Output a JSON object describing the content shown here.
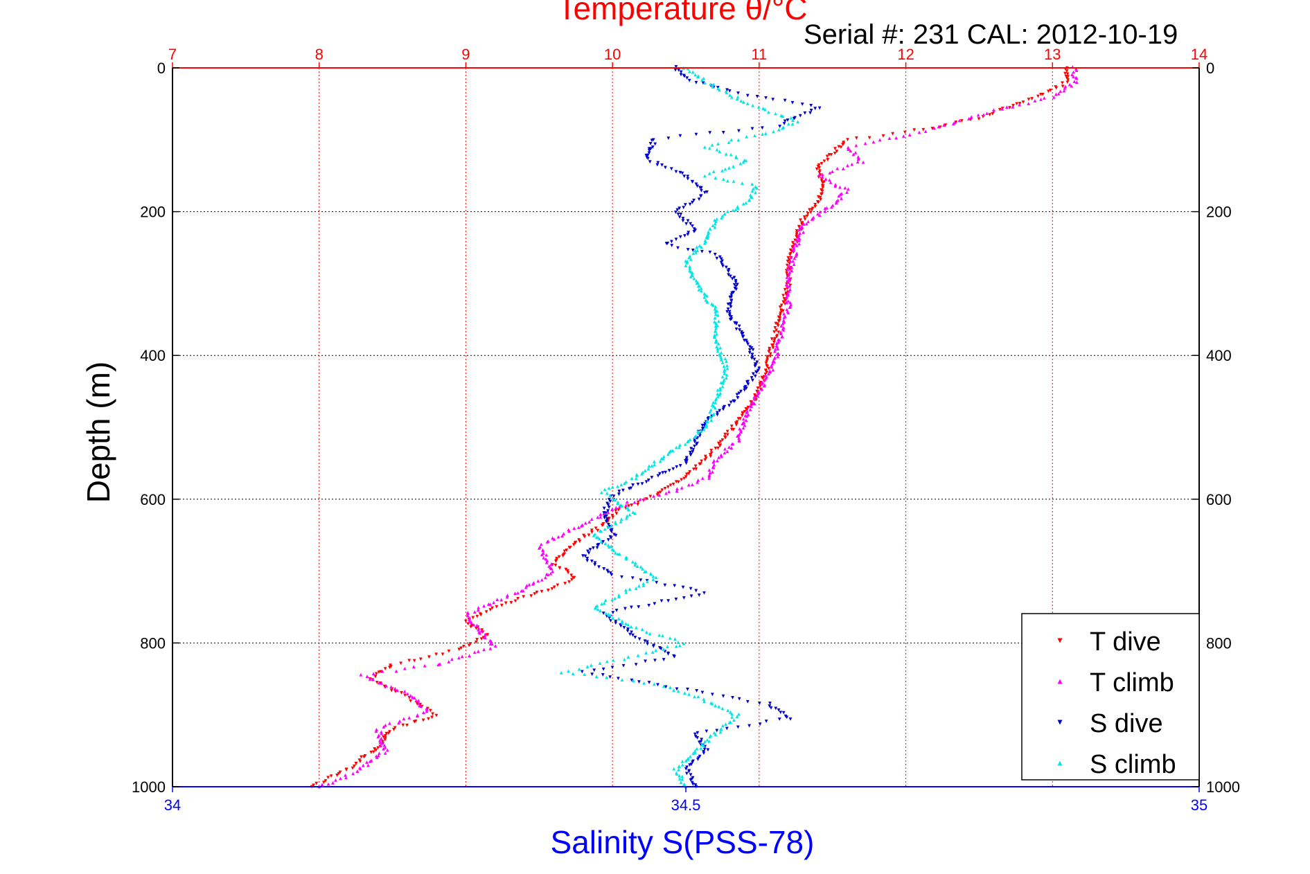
{
  "chart_data": {
    "type": "scatter",
    "title": "Temperature θ/°C",
    "subtitle": "Serial #: 231   CAL: 2012-10-19",
    "ylabel": "Depth (m)",
    "xlabel": "Salinity S(PSS-78)",
    "temperature_axis": {
      "range": [
        7,
        14
      ],
      "ticks": [
        "7",
        "8",
        "9",
        "10",
        "11",
        "12",
        "13",
        "14"
      ],
      "color": "#ff0000"
    },
    "salinity_axis": {
      "range": [
        34,
        35
      ],
      "ticks": [
        "34",
        "34.5",
        "35"
      ],
      "color": "#0000ff"
    },
    "depth_axis": {
      "range": [
        0,
        1000
      ],
      "reversed": true,
      "ticks": [
        "0",
        "200",
        "400",
        "600",
        "800",
        "1000"
      ]
    },
    "grid": true,
    "legend": {
      "position": "bottom-right",
      "entries": [
        {
          "label": "T dive",
          "color": "#ff0000",
          "marker": "triangle-down"
        },
        {
          "label": "T climb",
          "color": "#ff00ff",
          "marker": "triangle-up"
        },
        {
          "label": "S dive",
          "color": "#0000cc",
          "marker": "triangle-down"
        },
        {
          "label": "S climb",
          "color": "#00e6e6",
          "marker": "triangle-up"
        }
      ]
    },
    "series": [
      {
        "name": "T dive",
        "axis": "temperature",
        "color": "#ff0000",
        "points": [
          [
            13.1,
            0
          ],
          [
            13.1,
            20
          ],
          [
            12.9,
            40
          ],
          [
            12.5,
            70
          ],
          [
            12.0,
            90
          ],
          [
            11.6,
            100
          ],
          [
            11.5,
            120
          ],
          [
            11.4,
            140
          ],
          [
            11.45,
            165
          ],
          [
            11.4,
            185
          ],
          [
            11.3,
            210
          ],
          [
            11.25,
            240
          ],
          [
            11.2,
            270
          ],
          [
            11.2,
            300
          ],
          [
            11.15,
            340
          ],
          [
            11.1,
            380
          ],
          [
            11.05,
            420
          ],
          [
            11.0,
            450
          ],
          [
            10.9,
            480
          ],
          [
            10.75,
            520
          ],
          [
            10.6,
            550
          ],
          [
            10.45,
            575
          ],
          [
            10.3,
            595
          ],
          [
            10.05,
            615
          ],
          [
            9.9,
            640
          ],
          [
            9.75,
            660
          ],
          [
            9.6,
            690
          ],
          [
            9.75,
            710
          ],
          [
            9.5,
            730
          ],
          [
            9.2,
            750
          ],
          [
            9.0,
            770
          ],
          [
            9.15,
            790
          ],
          [
            8.95,
            810
          ],
          [
            8.5,
            830
          ],
          [
            8.35,
            850
          ],
          [
            8.6,
            875
          ],
          [
            8.8,
            900
          ],
          [
            8.5,
            920
          ],
          [
            8.4,
            945
          ],
          [
            8.2,
            975
          ],
          [
            7.95,
            1000
          ]
        ]
      },
      {
        "name": "T climb",
        "axis": "temperature",
        "color": "#ff00ff",
        "points": [
          [
            13.15,
            0
          ],
          [
            13.15,
            20
          ],
          [
            13.0,
            40
          ],
          [
            12.6,
            60
          ],
          [
            12.2,
            85
          ],
          [
            11.6,
            110
          ],
          [
            11.7,
            130
          ],
          [
            11.4,
            150
          ],
          [
            11.6,
            170
          ],
          [
            11.5,
            190
          ],
          [
            11.3,
            220
          ],
          [
            11.25,
            250
          ],
          [
            11.2,
            290
          ],
          [
            11.2,
            330
          ],
          [
            11.15,
            370
          ],
          [
            11.1,
            410
          ],
          [
            11.0,
            450
          ],
          [
            10.9,
            490
          ],
          [
            10.85,
            520
          ],
          [
            10.7,
            545
          ],
          [
            10.65,
            570
          ],
          [
            10.4,
            590
          ],
          [
            10.1,
            605
          ],
          [
            9.8,
            635
          ],
          [
            9.5,
            665
          ],
          [
            9.6,
            700
          ],
          [
            9.35,
            730
          ],
          [
            9.0,
            760
          ],
          [
            9.1,
            785
          ],
          [
            9.2,
            805
          ],
          [
            8.8,
            830
          ],
          [
            8.3,
            845
          ],
          [
            8.6,
            870
          ],
          [
            8.75,
            895
          ],
          [
            8.4,
            920
          ],
          [
            8.45,
            950
          ],
          [
            8.25,
            980
          ],
          [
            8.0,
            1000
          ]
        ]
      },
      {
        "name": "S dive",
        "axis": "salinity",
        "color": "#0000cc",
        "points": [
          [
            34.49,
            0
          ],
          [
            34.5,
            15
          ],
          [
            34.55,
            35
          ],
          [
            34.63,
            55
          ],
          [
            34.59,
            80
          ],
          [
            34.47,
            100
          ],
          [
            34.46,
            125
          ],
          [
            34.5,
            150
          ],
          [
            34.52,
            175
          ],
          [
            34.49,
            200
          ],
          [
            34.51,
            225
          ],
          [
            34.48,
            245
          ],
          [
            34.53,
            260
          ],
          [
            34.55,
            300
          ],
          [
            34.54,
            340
          ],
          [
            34.56,
            380
          ],
          [
            34.57,
            420
          ],
          [
            34.55,
            460
          ],
          [
            34.52,
            490
          ],
          [
            34.51,
            520
          ],
          [
            34.5,
            550
          ],
          [
            34.46,
            575
          ],
          [
            34.43,
            595
          ],
          [
            34.42,
            620
          ],
          [
            34.43,
            650
          ],
          [
            34.4,
            680
          ],
          [
            34.43,
            705
          ],
          [
            34.52,
            730
          ],
          [
            34.42,
            760
          ],
          [
            34.45,
            790
          ],
          [
            34.49,
            820
          ],
          [
            34.4,
            840
          ],
          [
            34.5,
            865
          ],
          [
            34.58,
            885
          ],
          [
            34.6,
            905
          ],
          [
            34.51,
            925
          ],
          [
            34.52,
            950
          ],
          [
            34.5,
            975
          ],
          [
            34.51,
            1000
          ]
        ]
      },
      {
        "name": "S climb",
        "axis": "salinity",
        "color": "#00e6e6",
        "points": [
          [
            34.5,
            0
          ],
          [
            34.52,
            20
          ],
          [
            34.56,
            50
          ],
          [
            34.61,
            75
          ],
          [
            34.58,
            90
          ],
          [
            34.52,
            110
          ],
          [
            34.56,
            130
          ],
          [
            34.52,
            150
          ],
          [
            34.57,
            165
          ],
          [
            34.56,
            185
          ],
          [
            34.53,
            210
          ],
          [
            34.52,
            240
          ],
          [
            34.5,
            270
          ],
          [
            34.51,
            300
          ],
          [
            34.53,
            340
          ],
          [
            34.53,
            380
          ],
          [
            34.54,
            420
          ],
          [
            34.53,
            460
          ],
          [
            34.52,
            500
          ],
          [
            34.48,
            540
          ],
          [
            34.45,
            570
          ],
          [
            34.42,
            590
          ],
          [
            34.45,
            620
          ],
          [
            34.41,
            650
          ],
          [
            34.44,
            680
          ],
          [
            34.47,
            710
          ],
          [
            34.41,
            750
          ],
          [
            34.45,
            780
          ],
          [
            34.5,
            800
          ],
          [
            34.46,
            815
          ],
          [
            34.38,
            840
          ],
          [
            34.48,
            860
          ],
          [
            34.52,
            880
          ],
          [
            34.55,
            900
          ],
          [
            34.53,
            925
          ],
          [
            34.51,
            950
          ],
          [
            34.49,
            975
          ],
          [
            34.5,
            1000
          ]
        ]
      }
    ]
  }
}
